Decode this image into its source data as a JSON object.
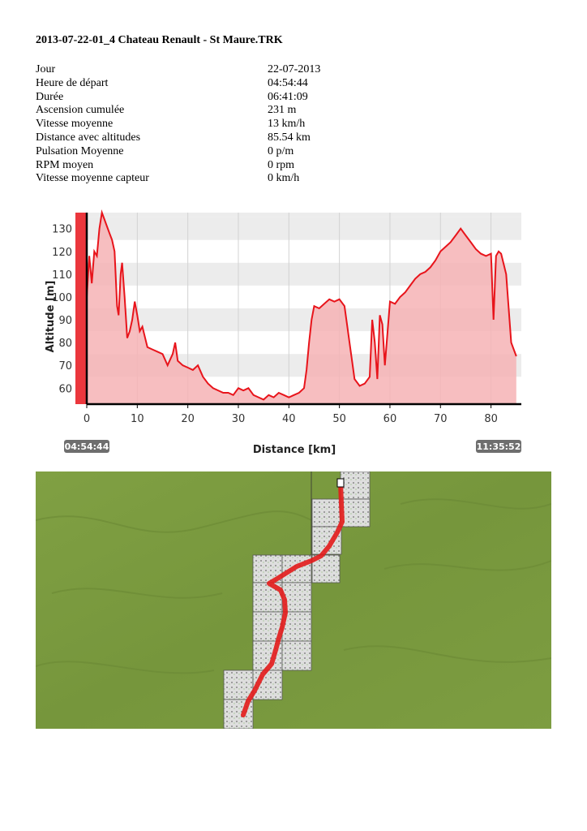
{
  "document": {
    "title": "2013-07-22-01_4 Chateau Renault - St Maure.TRK"
  },
  "stats": [
    {
      "label": "Jour",
      "value": "22-07-2013"
    },
    {
      "label": "Heure de départ",
      "value": "04:54:44"
    },
    {
      "label": "Durée",
      "value": "06:41:09"
    },
    {
      "label": "Ascension cumulée",
      "value": "231 m"
    },
    {
      "label": "Vitesse moyenne",
      "value": "13 km/h"
    },
    {
      "label": "Distance avec altitudes",
      "value": "85.54 km"
    },
    {
      "label": "Pulsation Moyenne",
      "value": "0 p/m"
    },
    {
      "label": "RPM moyen",
      "value": "0 rpm"
    },
    {
      "label": "Vitesse moyenne capteur",
      "value": "0 km/h"
    }
  ],
  "chart_data": {
    "type": "area",
    "xlabel": "Distance [km]",
    "ylabel": "Altitude [m]",
    "xlim": [
      0,
      86
    ],
    "ylim": [
      53,
      137
    ],
    "x_ticks": [
      0,
      10,
      20,
      30,
      40,
      50,
      60,
      70,
      80
    ],
    "y_ticks": [
      60,
      70,
      80,
      90,
      100,
      110,
      120,
      130
    ],
    "start_time_label": "04:54:44",
    "end_time_label": "11:35:52",
    "line_color": "#e8141b",
    "fill_color": "#f6b3b5",
    "series": [
      {
        "x": [
          0,
          0.5,
          1,
          1.5,
          2,
          2.5,
          3,
          3.5,
          4,
          4.5,
          5,
          5.5,
          6,
          6.3,
          6.7,
          7,
          7.5,
          8,
          8.5,
          9,
          9.5,
          10,
          10.5,
          11,
          12,
          13,
          14,
          15,
          16,
          17,
          17.5,
          18,
          19,
          20,
          21,
          22,
          23,
          24,
          25,
          26,
          27,
          28,
          29,
          30,
          31,
          32,
          33,
          34,
          35,
          36,
          37,
          38,
          39,
          40,
          41,
          42,
          43,
          43.5,
          44,
          44.5,
          45,
          46,
          47,
          48,
          49,
          50,
          51,
          52,
          53,
          54,
          55,
          56,
          56.5,
          57,
          57.5,
          58,
          58.5,
          59,
          60,
          61,
          62,
          63,
          64,
          65,
          66,
          67,
          68,
          69,
          70,
          71,
          72,
          73,
          74,
          75,
          76,
          77,
          78,
          79,
          80,
          80.5,
          81,
          81.5,
          82,
          83,
          84,
          85
        ],
        "y": [
          100,
          118,
          106,
          120,
          118,
          130,
          137,
          134,
          131,
          128,
          125,
          120,
          96,
          92,
          110,
          115,
          100,
          82,
          85,
          90,
          98,
          92,
          85,
          87,
          78,
          77,
          76,
          75,
          70,
          75,
          80,
          72,
          70,
          69,
          68,
          70,
          65,
          62,
          60,
          59,
          58,
          58,
          57,
          60,
          59,
          60,
          57,
          56,
          55,
          57,
          56,
          58,
          57,
          56,
          57,
          58,
          60,
          68,
          80,
          90,
          96,
          95,
          97,
          99,
          98,
          99,
          96,
          80,
          64,
          61,
          62,
          65,
          90,
          80,
          64,
          92,
          88,
          70,
          98,
          97,
          100,
          102,
          105,
          108,
          110,
          111,
          113,
          116,
          120,
          122,
          124,
          127,
          130,
          127,
          124,
          121,
          119,
          118,
          119,
          90,
          118,
          120,
          119,
          110,
          80,
          74
        ]
      }
    ]
  },
  "map": {
    "background_color": "#7a9a3d",
    "route_color": "#e31b1b"
  }
}
